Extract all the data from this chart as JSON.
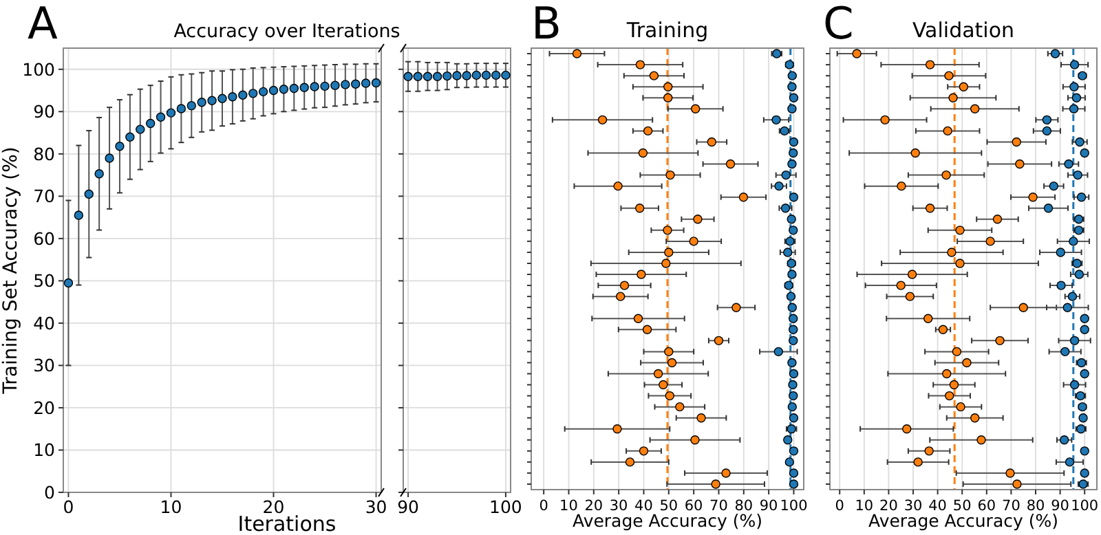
{
  "chart_data": [
    {
      "type": "scatter",
      "title": "Accuracy over Iterations",
      "xlabel": "Iterations",
      "ylabel": "Training Set Accuracy (%)",
      "annotations": [
        "A"
      ],
      "marker": "circle",
      "grid": true,
      "xlim": [
        -0.5,
        30.5
      ],
      "xticks": [
        0,
        10,
        20,
        30
      ],
      "ylim": [
        0,
        105
      ],
      "yticks": [
        0,
        10,
        20,
        30,
        40,
        50,
        60,
        70,
        80,
        90,
        100
      ],
      "x": [
        0,
        1,
        2,
        3,
        4,
        5,
        6,
        7,
        8,
        9,
        10,
        11,
        12,
        13,
        14,
        15,
        16,
        17,
        18,
        19,
        20,
        21,
        22,
        23,
        24,
        25,
        26,
        27,
        28,
        29,
        30
      ],
      "series": [
        {
          "color": "#1f77b4",
          "values": [
            49.5,
            65.5,
            70.5,
            75.3,
            79,
            81.8,
            84,
            85.8,
            87.2,
            88.7,
            89.7,
            90.7,
            91.4,
            92.2,
            92.6,
            93.1,
            93.5,
            93.9,
            94.3,
            94.7,
            95,
            95.3,
            95.5,
            95.7,
            95.9,
            96,
            96.2,
            96.4,
            96.5,
            96.7,
            96.8
          ],
          "errors": [
            19.5,
            16.5,
            15,
            13.3,
            12,
            11,
            10,
            9.5,
            9,
            8.5,
            8.5,
            8,
            7.5,
            7,
            7,
            6.5,
            6.4,
            6.1,
            6,
            5.7,
            5.5,
            5.3,
            5.2,
            5.1,
            5,
            5,
            4.9,
            4.8,
            4.7,
            4.6,
            4.5
          ]
        }
      ]
    },
    {
      "type": "scatter",
      "marker": "circle",
      "grid": true,
      "tick_labels": "x",
      "xlim": [
        89.5,
        100.5
      ],
      "xticks": [
        90,
        100
      ],
      "ylim": [
        0,
        105
      ],
      "yticks": [
        0,
        10,
        20,
        30,
        40,
        50,
        60,
        70,
        80,
        90,
        100
      ],
      "x": [
        90,
        91,
        92,
        93,
        94,
        95,
        96,
        97,
        98,
        99,
        100
      ],
      "series": [
        {
          "color": "#1f77b4",
          "values": [
            98.3,
            98.3,
            98.3,
            98.3,
            98.4,
            98.5,
            98.5,
            98.6,
            98.6,
            98.6,
            98.6
          ],
          "errors": [
            3.5,
            3.5,
            3.3,
            3.3,
            3.2,
            2.8,
            2.8,
            2.8,
            2.8,
            2.8,
            2.8
          ]
        }
      ]
    },
    {
      "type": "scatter",
      "orientation": "horizontal",
      "title": "Training",
      "xlabel": "Average Accuracy (%)",
      "annotations": [
        "B"
      ],
      "marker": "circle",
      "grid": "x",
      "tick_labels": "x",
      "xlim": [
        -5,
        104
      ],
      "xticks": [
        0,
        10,
        20,
        30,
        40,
        50,
        60,
        70,
        80,
        90,
        100
      ],
      "categories": [
        null,
        null,
        null,
        null,
        null,
        null,
        null,
        null,
        null,
        null,
        null,
        null,
        null,
        null,
        null,
        null,
        null,
        null,
        null,
        null,
        null,
        null,
        null,
        null,
        null,
        null,
        null,
        null,
        null,
        null,
        null,
        null,
        null,
        null,
        null,
        null,
        null,
        null,
        null,
        null
      ],
      "series": [
        {
          "color": "#ff7f0e",
          "values": [
            13.3,
            38.6,
            44.1,
            49.7,
            49.7,
            60.7,
            23.5,
            41.7,
            67.2,
            39.7,
            74.7,
            50.6,
            29.7,
            79.9,
            38.4,
            61.6,
            49.5,
            60,
            50,
            48.9,
            39,
            32.3,
            30.7,
            77,
            37.8,
            41.4,
            70,
            50,
            51.3,
            45.8,
            47.8,
            50.4,
            54.4,
            63,
            29.4,
            60.5,
            40,
            34.5,
            72.9,
            68.8
          ],
          "errors": [
            11,
            17,
            12,
            14,
            10,
            11,
            20,
            6,
            6,
            22,
            11,
            12,
            17.5,
            9,
            7.5,
            6.5,
            6.5,
            11,
            16,
            30,
            18,
            10.5,
            11,
            7.5,
            18.5,
            11.5,
            4,
            10,
            12.5,
            20,
            7.5,
            8.5,
            10,
            10,
            21,
            18,
            7,
            15.5,
            16.5,
            19.5
          ]
        },
        {
          "color": "#1f77b4",
          "values": [
            93.2,
            98.3,
            99.4,
            99.3,
            100,
            99.3,
            93,
            96.3,
            100,
            99.8,
            99.3,
            96.9,
            94.1,
            100,
            96.7,
            99.1,
            99.8,
            98.5,
            97.6,
            99.1,
            99.3,
            98,
            98.9,
            99.4,
            99.8,
            99.8,
            99.8,
            93.9,
            99.3,
            100,
            99.6,
            99.8,
            99.4,
            100,
            99.1,
            97.6,
            100,
            98.3,
            100,
            100
          ],
          "errors": [
            2,
            1.5,
            null,
            null,
            null,
            null,
            5,
            2,
            null,
            null,
            null,
            4,
            3,
            null,
            2.5,
            1,
            null,
            2,
            3,
            1.5,
            1,
            1.5,
            1,
            null,
            null,
            null,
            null,
            7.5,
            null,
            null,
            null,
            null,
            null,
            null,
            2,
            1,
            null,
            1,
            null,
            null
          ]
        }
      ],
      "ref_lines": [
        {
          "axis": "x",
          "value": 49.5,
          "color": "#ff7f0e",
          "line_style": "dashed"
        },
        {
          "axis": "x",
          "value": 98.7,
          "color": "#1f77b4",
          "line_style": "dashed"
        }
      ]
    },
    {
      "type": "scatter",
      "orientation": "horizontal",
      "title": "Validation",
      "xlabel": "Average Accuracy (%)",
      "annotations": [
        "C"
      ],
      "marker": "circle",
      "grid": "x",
      "tick_labels": "x",
      "xlim": [
        -4,
        105
      ],
      "xticks": [
        0,
        10,
        20,
        30,
        40,
        50,
        60,
        70,
        80,
        90,
        100
      ],
      "categories": [
        null,
        null,
        null,
        null,
        null,
        null,
        null,
        null,
        null,
        null,
        null,
        null,
        null,
        null,
        null,
        null,
        null,
        null,
        null,
        null,
        null,
        null,
        null,
        null,
        null,
        null,
        null,
        null,
        null,
        null,
        null,
        null,
        null,
        null,
        null,
        null,
        null,
        null,
        null,
        null
      ],
      "series": [
        {
          "color": "#ff7f0e",
          "values": [
            7,
            36.9,
            44.6,
            50.6,
            46.3,
            55.2,
            18.5,
            44.1,
            72.2,
            30.9,
            73.5,
            43.5,
            25.2,
            78.9,
            36.9,
            64.4,
            49.1,
            61.5,
            45.7,
            49.1,
            29.6,
            25,
            28.7,
            75,
            36.1,
            42.2,
            65.4,
            47.8,
            51.9,
            43.7,
            46.7,
            44.8,
            49.4,
            55.2,
            27.4,
            57.8,
            36.5,
            32,
            69.6,
            72.4
          ],
          "errors": [
            8,
            20,
            15,
            6.5,
            17.5,
            18,
            17,
            13,
            12,
            27,
            13,
            15.5,
            15,
            9,
            7,
            8.5,
            13,
            13.5,
            21,
            32,
            22.5,
            14.5,
            9.5,
            13.5,
            17,
            3,
            11.5,
            13,
            13,
            24,
            8.5,
            8.5,
            8.5,
            11.5,
            19,
            21,
            8.5,
            12.5,
            22,
            22
          ]
        },
        {
          "color": "#1f77b4",
          "values": [
            88,
            95.9,
            99.1,
            95.7,
            96.7,
            95.6,
            84.6,
            84.6,
            98,
            100,
            93.5,
            97.2,
            87.4,
            98.7,
            85.2,
            97.6,
            97.6,
            95.4,
            90.2,
            96.9,
            97.8,
            90.4,
            95,
            93,
            100,
            100,
            95.9,
            92,
            98.7,
            100,
            95.9,
            98.3,
            99.1,
            99.4,
            98.5,
            91.7,
            100,
            93.9,
            100,
            99.4
          ],
          "errors": [
            3,
            5.5,
            1.5,
            4.5,
            3.5,
            4.5,
            4.5,
            5.5,
            3,
            null,
            4,
            4,
            4,
            3,
            8,
            2,
            2,
            6.5,
            8.5,
            2,
            3.5,
            4.5,
            3,
            8.5,
            null,
            null,
            6.5,
            6.5,
            2,
            null,
            4.5,
            2,
            1.5,
            1,
            2,
            3,
            null,
            5.5,
            null,
            2
          ]
        }
      ],
      "ref_lines": [
        {
          "axis": "x",
          "value": 46.9,
          "color": "#ff7f0e",
          "line_style": "dashed"
        },
        {
          "axis": "x",
          "value": 95.4,
          "color": "#1f77b4",
          "line_style": "dashed"
        }
      ]
    }
  ]
}
